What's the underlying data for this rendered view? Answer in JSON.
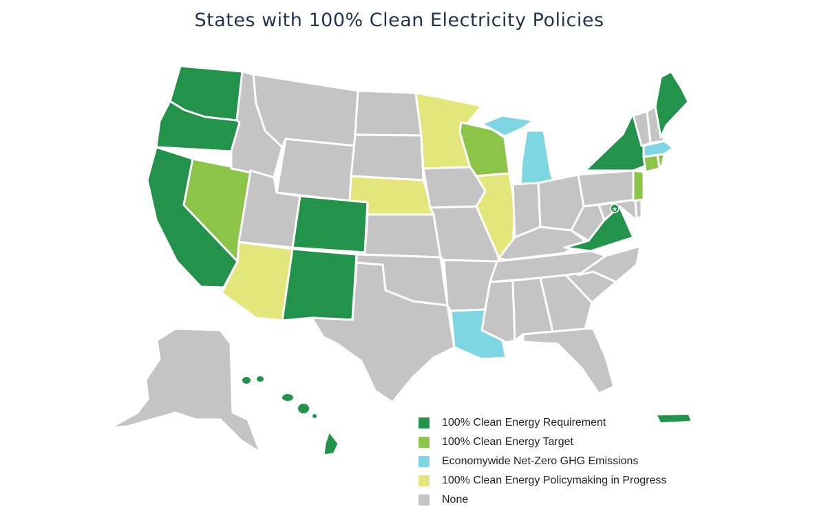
{
  "title": "States with 100% Clean Electricity Policies",
  "colors": {
    "requirement": "#23924a",
    "target": "#8cc349",
    "netzero": "#7fd6e3",
    "inprogress": "#e3e77b",
    "none": "#c4c4c4",
    "title": "#1f3350"
  },
  "legend": {
    "items": [
      {
        "label": "100% Clean Energy Requirement",
        "color": "#23924a"
      },
      {
        "label": "100% Clean Energy Target",
        "color": "#8cc349"
      },
      {
        "label": "Economywide Net-Zero GHG Emissions",
        "color": "#7fd6e3"
      },
      {
        "label": "100% Clean Energy Policymaking in Progress",
        "color": "#e3e77b"
      },
      {
        "label": "None",
        "color": "#c4c4c4"
      }
    ]
  },
  "states": {
    "requirement": [
      "Washington",
      "Oregon",
      "California",
      "Colorado",
      "New Mexico",
      "New York",
      "Virginia",
      "Maine",
      "Hawaii",
      "Puerto Rico",
      "District of Columbia"
    ],
    "target": [
      "Nevada",
      "Wisconsin",
      "New Jersey",
      "Connecticut",
      "Rhode Island"
    ],
    "netzero": [
      "Michigan",
      "Louisiana",
      "Massachusetts"
    ],
    "inprogress": [
      "Minnesota",
      "Nebraska",
      "Illinois",
      "Arizona"
    ]
  }
}
